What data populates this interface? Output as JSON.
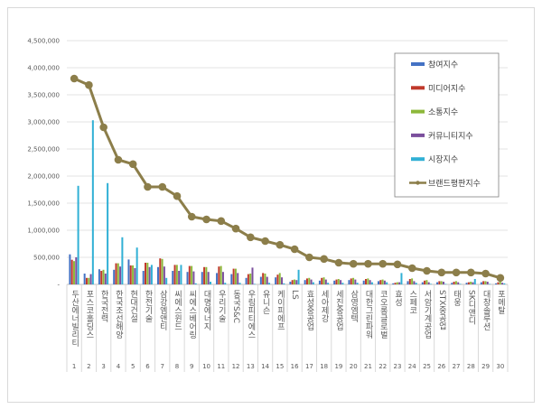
{
  "chart_data": {
    "type": "bar",
    "title": "",
    "xlabel": "",
    "ylabel": "",
    "ylim": [
      0,
      4500000
    ],
    "yticks": [
      0,
      500000,
      1000000,
      1500000,
      2000000,
      2500000,
      3000000,
      3500000,
      4000000,
      4500000
    ],
    "ytick_labels": [
      "-",
      "500,000",
      "1,000,000",
      "1,500,000",
      "2,000,000",
      "2,500,000",
      "3,000,000",
      "3,500,000",
      "4,000,000",
      "4,500,000"
    ],
    "grid": true,
    "legend_position": "top-right",
    "categories": [
      "두산에너빌리티",
      "포스코홀딩스",
      "한국전력",
      "한국조선해양",
      "현대건설",
      "한전기술",
      "삼강엠앤티",
      "씨에스윈드",
      "씨에스베어링",
      "대명에너지",
      "우리기술",
      "동국S&C",
      "우림피티에스",
      "유니슨",
      "케이피에프",
      "LS",
      "효성중공업",
      "세아제강",
      "세진중공업",
      "삼영엠텍",
      "대한그린파워",
      "코오롱글로벌",
      "효성",
      "스페코",
      "서암기계공업",
      "STX중공업",
      "태웅",
      "SK디앤디",
      "대창솔루션",
      "포메탈"
    ],
    "category_numbers": [
      "1",
      "2",
      "3",
      "4",
      "5",
      "6",
      "7",
      "8",
      "9",
      "10",
      "11",
      "12",
      "13",
      "14",
      "15",
      "16",
      "17",
      "18",
      "19",
      "20",
      "21",
      "22",
      "23",
      "24",
      "25",
      "26",
      "27",
      "28",
      "29",
      "30"
    ],
    "series": [
      {
        "name": "참여지수",
        "type": "bar",
        "color": "#4472c4",
        "values": [
          555000,
          200000,
          280000,
          270000,
          460000,
          250000,
          320000,
          250000,
          230000,
          230000,
          210000,
          190000,
          120000,
          140000,
          130000,
          50000,
          80000,
          70000,
          70000,
          80000,
          70000,
          60000,
          20000,
          60000,
          40000,
          40000,
          30000,
          30000,
          40000,
          20000
        ]
      },
      {
        "name": "미디어지수",
        "type": "bar",
        "color": "#c0392b",
        "values": [
          455000,
          120000,
          250000,
          390000,
          350000,
          400000,
          480000,
          360000,
          340000,
          320000,
          330000,
          290000,
          190000,
          210000,
          180000,
          80000,
          110000,
          120000,
          90000,
          110000,
          100000,
          80000,
          30000,
          100000,
          70000,
          60000,
          50000,
          40000,
          60000,
          40000
        ]
      },
      {
        "name": "소통지수",
        "type": "bar",
        "color": "#8db83a",
        "values": [
          430000,
          120000,
          270000,
          390000,
          350000,
          400000,
          470000,
          360000,
          340000,
          320000,
          340000,
          290000,
          200000,
          200000,
          210000,
          90000,
          120000,
          130000,
          100000,
          120000,
          110000,
          90000,
          40000,
          110000,
          80000,
          60000,
          60000,
          50000,
          60000,
          60000
        ]
      },
      {
        "name": "커뮤니티지수",
        "type": "bar",
        "color": "#7b4f9d",
        "values": [
          500000,
          190000,
          200000,
          330000,
          300000,
          320000,
          330000,
          250000,
          240000,
          230000,
          230000,
          210000,
          310000,
          140000,
          130000,
          80000,
          90000,
          90000,
          80000,
          90000,
          80000,
          70000,
          40000,
          60000,
          40000,
          50000,
          40000,
          40000,
          50000,
          30000
        ]
      },
      {
        "name": "시장지수",
        "type": "bar",
        "color": "#31b0d5",
        "values": [
          1820000,
          3030000,
          1870000,
          870000,
          680000,
          360000,
          120000,
          360000,
          20000,
          50000,
          30000,
          30000,
          10000,
          30000,
          20000,
          270000,
          40000,
          30000,
          30000,
          30000,
          40000,
          40000,
          210000,
          30000,
          10000,
          10000,
          10000,
          100000,
          10000,
          20000
        ]
      },
      {
        "name": "브랜드평판지수",
        "type": "line",
        "color": "#8c7e4a",
        "values": [
          3800000,
          3680000,
          2900000,
          2300000,
          2220000,
          1800000,
          1800000,
          1630000,
          1250000,
          1200000,
          1170000,
          1030000,
          870000,
          800000,
          730000,
          650000,
          500000,
          470000,
          400000,
          380000,
          380000,
          380000,
          370000,
          300000,
          250000,
          220000,
          220000,
          220000,
          200000,
          120000
        ]
      }
    ]
  }
}
